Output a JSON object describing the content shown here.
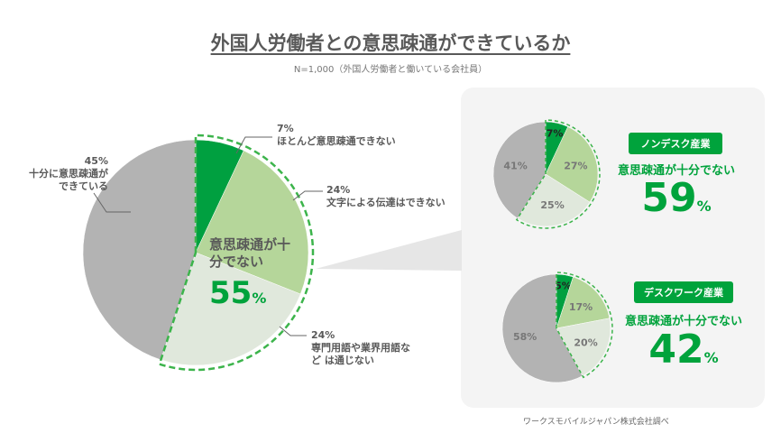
{
  "title": "外国人労働者との意思疎通ができているか",
  "subtitle": "N=1,000（外国人労働者と働いている会社員）",
  "colors": {
    "dark_green": "#00a040",
    "light_green": "#b5d69a",
    "pale_green": "#e0e8dc",
    "gray": "#b3b3b3",
    "accent": "#00a33c"
  },
  "chart_data": [
    {
      "type": "pie",
      "name": "all",
      "categories": [
        "ほとんど意思疎通できない",
        "文字による伝達はできない",
        "専門用語や業界用語などは通じない",
        "十分に意思疎通ができている"
      ],
      "values": [
        7,
        24,
        24,
        45
      ],
      "labels": [
        {
          "pct": "7%",
          "text": "ほとんど意思疎通できない"
        },
        {
          "pct": "24%",
          "text": "文字による伝達はできない"
        },
        {
          "pct": "24%",
          "text": "専門用語や業界用語など は通じない"
        },
        {
          "pct": "45%",
          "text": "十分に意思疎通が できている"
        }
      ],
      "center_label": "意思疎通が十分でない",
      "center_value": "55",
      "center_unit": "%"
    },
    {
      "type": "pie",
      "name": "non-desk",
      "values": [
        7,
        27,
        25,
        41
      ],
      "labels": [
        "7%",
        "27%",
        "25%",
        "41%"
      ],
      "badge": "ノンデスク産業",
      "caption": "意思疎通が十分でない",
      "value": "59",
      "unit": "%"
    },
    {
      "type": "pie",
      "name": "desk",
      "values": [
        5,
        17,
        20,
        58
      ],
      "labels": [
        "5%",
        "17%",
        "20%",
        "58%"
      ],
      "badge": "デスクワーク産業",
      "caption": "意思疎通が十分でない",
      "value": "42",
      "unit": "%"
    }
  ],
  "source": "ワークスモバイルジャパン株式会社調べ"
}
